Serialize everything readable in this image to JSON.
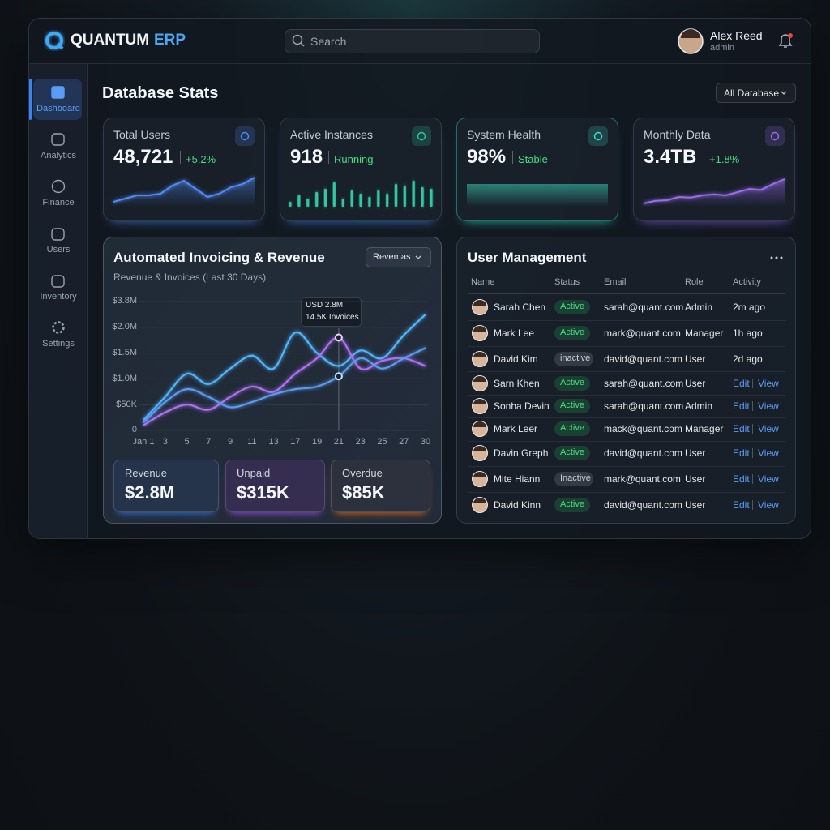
{
  "header": {
    "brand": "QUANTUM",
    "brand_accent": "ERP",
    "search": "Search",
    "user_name": "Alex Reed",
    "user_role": "admin"
  },
  "sidebar": {
    "items": [
      "Dashboard",
      "Analytics",
      "Finance",
      "Users",
      "Inventory",
      "Settings"
    ]
  },
  "page_title": "Database Stats",
  "filter": "All Database",
  "stat_cards": [
    {
      "title": "Total Users",
      "value": "48,721",
      "change": "+5.2%",
      "sparkline": {
        "type": "area",
        "color": "#4f8cf7",
        "values": [
          1.5,
          2.5,
          3.5,
          3.5,
          4,
          6.5,
          8,
          5.5,
          3,
          4,
          6,
          7,
          9
        ]
      }
    },
    {
      "title": "Active Instances",
      "value": "918",
      "change": "Running",
      "sparkline": {
        "type": "bar",
        "color": "#2ec9a0",
        "values": [
          1.5,
          3.5,
          2.5,
          4.5,
          5.5,
          7.5,
          2.5,
          5,
          4,
          3,
          5,
          4,
          7,
          6.5,
          8,
          6,
          5.5
        ]
      }
    },
    {
      "title": "System Health",
      "value": "98%",
      "change": "Stable",
      "sparkline": {
        "type": "area",
        "color": "#3fe0c8",
        "values": [
          7,
          7,
          7,
          7,
          7,
          7,
          7
        ]
      }
    },
    {
      "title": "Monthly Data",
      "value": "3.4TB",
      "change": "+1.8%",
      "sparkline": {
        "type": "area",
        "color": "#9b6cf0",
        "values": [
          1,
          1.8,
          2,
          3,
          2.8,
          3.5,
          3.8,
          3.5,
          4.5,
          5.5,
          5.2,
          7,
          8.5
        ]
      }
    }
  ],
  "revenue_chart": {
    "type": "line",
    "title": "Automated Invoicing & Revenue",
    "subtitle": "Revenue & Invoices (Last 30 Days)",
    "dropdown": "Revemas",
    "categories": [
      "Jan 1",
      "3",
      "5",
      "7",
      "9",
      "11",
      "13",
      "17",
      "19",
      "21",
      "23",
      "25",
      "27",
      "30"
    ],
    "y_labels": [
      "0",
      "$50K",
      "$1.0M",
      "$1.5M",
      "$2.0M",
      "$3.8M"
    ],
    "ylim": [
      0,
      5
    ],
    "series": [
      {
        "color": "#4fb6ff",
        "values": [
          0.4,
          1.3,
          2.2,
          1.8,
          2.4,
          2.9,
          2.4,
          3.8,
          3.0,
          2.5,
          3.1,
          2.8,
          3.7,
          4.5
        ]
      },
      {
        "color": "#b070f5",
        "values": [
          0.2,
          0.7,
          1.0,
          0.8,
          1.3,
          1.7,
          1.5,
          2.2,
          2.8,
          3.6,
          2.4,
          2.7,
          2.8,
          2.5
        ]
      },
      {
        "color": "#5a9af0",
        "values": [
          0.3,
          1.1,
          1.6,
          1.3,
          0.9,
          1.1,
          1.4,
          1.6,
          1.7,
          2.1,
          2.8,
          2.4,
          2.8,
          3.2
        ]
      }
    ],
    "tooltip": [
      "USD 2.8M",
      "14.5K Invoices"
    ]
  },
  "summary": [
    {
      "label": "Revenue",
      "value": "$2.8M"
    },
    {
      "label": "Unpaid",
      "value": "$315K"
    },
    {
      "label": "Overdue",
      "value": "$85K"
    }
  ],
  "user_table": {
    "title": "User Management",
    "columns": [
      "Name",
      "Status",
      "Email",
      "Role",
      "Activity"
    ],
    "rows": [
      {
        "name": "Sarah Chen",
        "status": "Active",
        "email": "sarah@quant.com",
        "role": "Admin",
        "activity": "2m ago"
      },
      {
        "name": "Mark Lee",
        "status": "Active",
        "email": "mark@quant.com",
        "role": "Manager",
        "activity": "1h ago"
      },
      {
        "name": "David Kim",
        "status": "inactive",
        "email": "david@quant.com",
        "role": "User",
        "activity": "2d ago"
      },
      {
        "name": "Sarn Khen",
        "status": "Active",
        "email": "sarah@quant.com",
        "role": "User",
        "actions": [
          "Edit",
          "View"
        ]
      },
      {
        "name": "Sonha Devin",
        "status": "Active",
        "email": "sarah@quant.com",
        "role": "Admin",
        "actions": [
          "Edit",
          "View"
        ]
      },
      {
        "name": "Mark Leer",
        "status": "Active",
        "email": "mack@quant.com",
        "role": "Manager",
        "actions": [
          "Edit",
          "View"
        ]
      },
      {
        "name": "Davin Greph",
        "status": "Active",
        "email": "david@quant.com",
        "role": "User",
        "actions": [
          "Edit",
          "View"
        ]
      },
      {
        "name": "Mite Hiann",
        "status": "Inactive",
        "email": "mark@quant.com",
        "role": "User",
        "actions": [
          "Edit",
          "View"
        ]
      },
      {
        "name": "David Kinn",
        "status": "Active",
        "email": "david@quant.com",
        "role": "User",
        "actions": [
          "Edit",
          "View"
        ]
      }
    ]
  }
}
